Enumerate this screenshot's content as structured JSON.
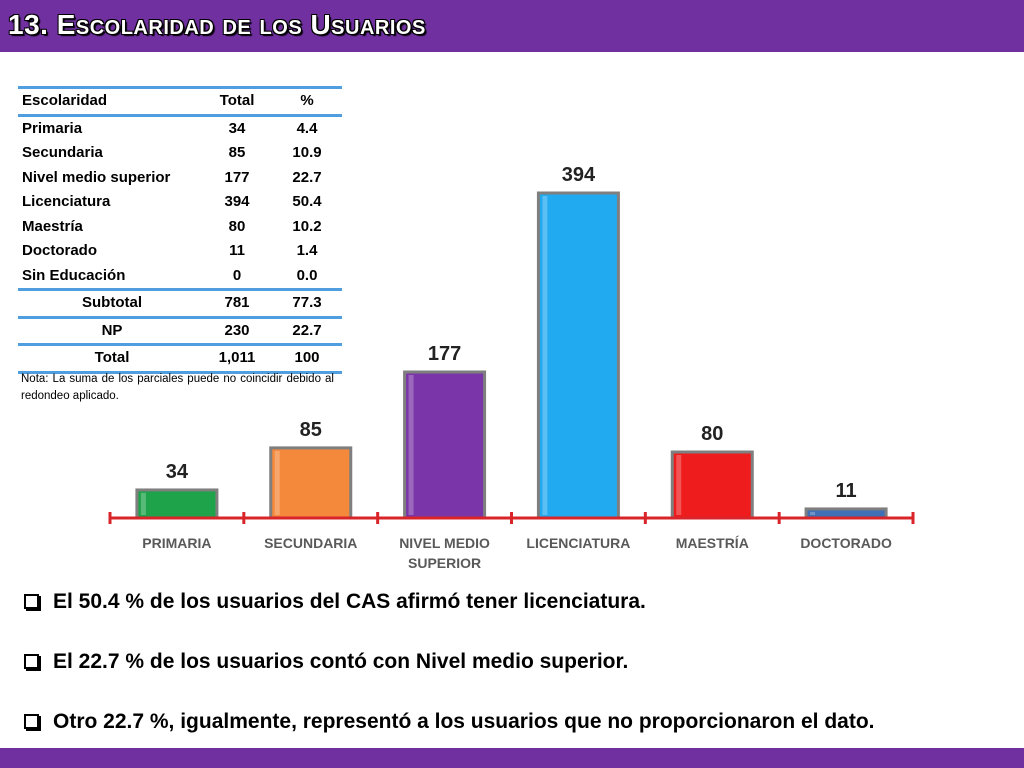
{
  "slide": {
    "title": "13. Escolaridad de los Usuarios",
    "accent_color": "#7030a0"
  },
  "table": {
    "headers": [
      "Escolaridad",
      "Total",
      "%"
    ],
    "rows": [
      [
        "Primaria",
        "34",
        "4.4"
      ],
      [
        "Secundaria",
        "85",
        "10.9"
      ],
      [
        "Nivel medio superior",
        "177",
        "22.7"
      ],
      [
        "Licenciatura",
        "394",
        "50.4"
      ],
      [
        "Maestría",
        "80",
        "10.2"
      ],
      [
        "Doctorado",
        "11",
        "1.4"
      ],
      [
        "Sin Educación",
        "0",
        "0.0"
      ]
    ],
    "subtotal": [
      "Subtotal",
      "781",
      "77.3"
    ],
    "np": [
      "NP",
      "230",
      "22.7"
    ],
    "total": [
      "Total",
      "1,011",
      "100"
    ],
    "note": "Nota: La suma de los parciales puede no coincidir debido al redondeo aplicado.",
    "rule_color": "#4f9fe0"
  },
  "chart_data": {
    "type": "bar",
    "categories": [
      "PRIMARIA",
      "SECUNDARIA",
      "NIVEL MEDIO SUPERIOR",
      "LICENCIATURA",
      "MAESTRÍA",
      "DOCTORADO"
    ],
    "category_lines": [
      [
        "PRIMARIA"
      ],
      [
        "SECUNDARIA"
      ],
      [
        "NIVEL MEDIO",
        "SUPERIOR"
      ],
      [
        "LICENCIATURA"
      ],
      [
        "MAESTRÍA"
      ],
      [
        "DOCTORADO"
      ]
    ],
    "values": [
      34,
      85,
      177,
      394,
      80,
      11
    ],
    "data_labels": [
      "34",
      "85",
      "177",
      "394",
      "80",
      "11"
    ],
    "colors": [
      "#1fa34a",
      "#f5893b",
      "#7a35a8",
      "#22aaf0",
      "#ee1c1c",
      "#3f6fb5"
    ],
    "axis_color": "#d9252a",
    "ylim": [
      0,
      394
    ],
    "grid": false,
    "legend": "none",
    "title": "",
    "xlabel": "",
    "ylabel": ""
  },
  "bullets": [
    "El 50.4 % de los usuarios del CAS afirmó tener licenciatura.",
    "El 22.7 % de los usuarios contó con Nivel medio superior.",
    "Otro 22.7 %, igualmente, representó a los usuarios que no proporcionaron el dato."
  ]
}
